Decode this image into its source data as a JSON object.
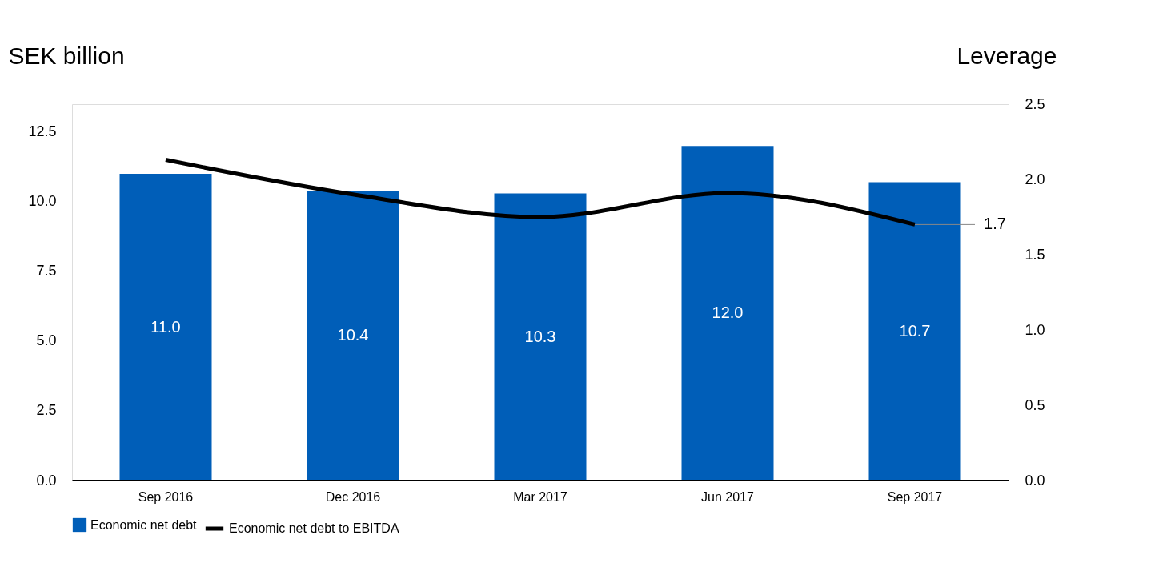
{
  "chart_data": {
    "type": "bar",
    "ylabel": "SEK billion",
    "y2label": "Leverage",
    "categories": [
      "Sep 2016",
      "Dec 2016",
      "Mar 2017",
      "Jun 2017",
      "Sep 2017"
    ],
    "series": [
      {
        "name": "Economic net debt",
        "color": "#005eb8",
        "values": [
          11.0,
          10.4,
          10.3,
          12.0,
          10.7
        ],
        "value_labels": [
          "11.0",
          "10.4",
          "10.3",
          "12.0",
          "10.7"
        ]
      },
      {
        "name": "Economic net debt to EBITDA",
        "type": "line",
        "axis": "y2",
        "color": "#000000",
        "values": [
          2.13,
          1.9,
          1.75,
          1.91,
          1.7
        ],
        "value_labels": [
          null,
          null,
          null,
          null,
          "1.7"
        ]
      }
    ],
    "ylim": [
      0,
      13.5
    ],
    "yticks": [
      {
        "value": 0,
        "label": "0.0"
      },
      {
        "value": 2.5,
        "label": "2.5"
      },
      {
        "value": 5,
        "label": "5.0"
      },
      {
        "value": 7.5,
        "label": "7.5"
      },
      {
        "value": 10,
        "label": "10.0"
      },
      {
        "value": 12.5,
        "label": "12.5"
      }
    ],
    "y2lim": [
      0,
      2.5
    ],
    "y2ticks": [
      {
        "value": 0,
        "label": "0.0"
      },
      {
        "value": 0.5,
        "label": "0.5"
      },
      {
        "value": 1,
        "label": "1.0"
      },
      {
        "value": 1.5,
        "label": "1.5"
      },
      {
        "value": 2,
        "label": "2.0"
      },
      {
        "value": 2.5,
        "label": "2.5"
      }
    ],
    "grid": false,
    "legend": "bottom",
    "line_style": "solid",
    "marker": "none"
  }
}
